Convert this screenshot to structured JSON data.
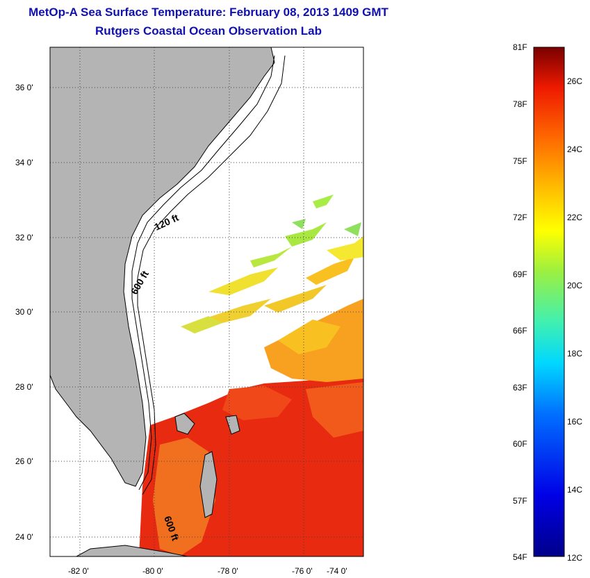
{
  "header": {
    "title": "MetOp-A Sea Surface Temperature:  February 08, 2013 1409 GMT",
    "subtitle": "Rutgers Coastal Ocean Observation Lab"
  },
  "map": {
    "lon_ticks": [
      "-82 0'",
      "-80 0'",
      "-78 0'",
      "-76 0'",
      "-74 0'"
    ],
    "lat_ticks": [
      "36 0'",
      "34 0'",
      "32 0'",
      "30 0'",
      "28 0'",
      "26 0'",
      "24 0'"
    ],
    "contour_labels": [
      "120 ft",
      "600 ft",
      "600 ft"
    ],
    "land_color": "#b4b4b4",
    "ocean_color": "#ffffff"
  },
  "colorbar": {
    "f_labels": [
      "81F",
      "78F",
      "75F",
      "72F",
      "69F",
      "66F",
      "63F",
      "60F",
      "57F",
      "54F"
    ],
    "c_labels": [
      "26C",
      "24C",
      "22C",
      "20C",
      "18C",
      "16C",
      "14C",
      "12C"
    ],
    "top_color": "#7a0000",
    "bottom_color": "#00008a"
  }
}
